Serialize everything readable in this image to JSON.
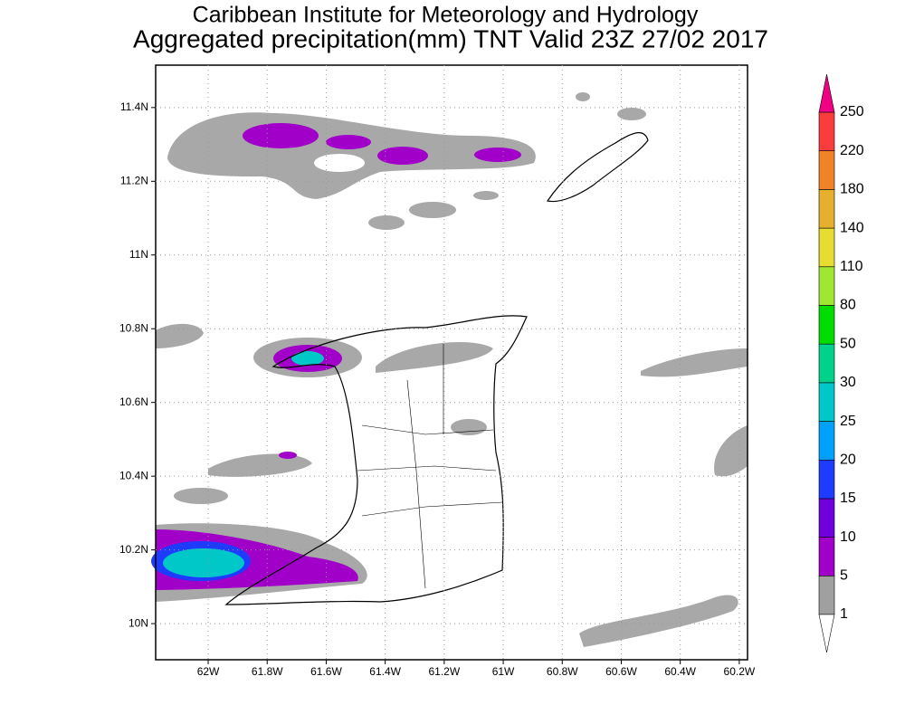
{
  "chart_data": {
    "type": "map",
    "title": "Caribbean Institute for Meteorology and Hydrology",
    "subtitle": "Aggregated precipitation(mm) TNT Valid 23Z 27/02 2017",
    "xlim": [
      -62.178,
      -60.172
    ],
    "ylim": [
      9.902,
      11.515
    ],
    "xticks": [
      {
        "value": -62,
        "label": "62W"
      },
      {
        "value": -61.8,
        "label": "61.8W"
      },
      {
        "value": -61.6,
        "label": "61.6W"
      },
      {
        "value": -61.4,
        "label": "61.4W"
      },
      {
        "value": -61.2,
        "label": "61.2W"
      },
      {
        "value": -61,
        "label": "61W"
      },
      {
        "value": -60.8,
        "label": "60.8W"
      },
      {
        "value": -60.6,
        "label": "60.6W"
      },
      {
        "value": -60.4,
        "label": "60.4W"
      },
      {
        "value": -60.2,
        "label": "60.2W"
      }
    ],
    "yticks": [
      {
        "value": 10,
        "label": "10N"
      },
      {
        "value": 10.2,
        "label": "10.2N"
      },
      {
        "value": 10.4,
        "label": "10.4N"
      },
      {
        "value": 10.6,
        "label": "10.6N"
      },
      {
        "value": 10.8,
        "label": "10.8N"
      },
      {
        "value": 11,
        "label": "11N"
      },
      {
        "value": 11.2,
        "label": "11.2N"
      },
      {
        "value": 11.4,
        "label": "11.4N"
      }
    ],
    "grid": true,
    "colorbar": {
      "levels": [
        1,
        5,
        10,
        15,
        20,
        25,
        30,
        50,
        80,
        110,
        140,
        180,
        220,
        250
      ],
      "colors": [
        "#a0a0a0",
        "#a000c8",
        "#6e00dc",
        "#1e3cff",
        "#00a0ff",
        "#00c8c8",
        "#00d28c",
        "#00dc00",
        "#a0e632",
        "#e6dc32",
        "#e6af2d",
        "#f08228",
        "#fa3c3c"
      ],
      "under_color": "#ffffff",
      "over_color": "#f00082"
    }
  }
}
